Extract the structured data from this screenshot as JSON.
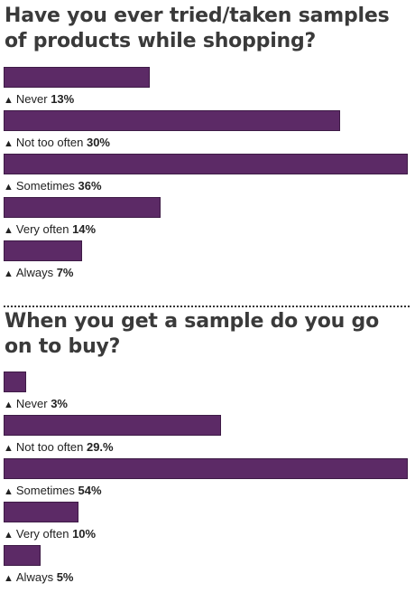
{
  "charts": [
    {
      "title": "Have you ever tried/taken samples of products while shopping?",
      "bars": [
        {
          "category": "Never",
          "value_label": "13%"
        },
        {
          "category": "Not too often",
          "value_label": "30%"
        },
        {
          "category": "Sometimes",
          "value_label": "36%"
        },
        {
          "category": "Very often",
          "value_label": "14%"
        },
        {
          "category": "Always",
          "value_label": "7%"
        }
      ]
    },
    {
      "title": "When you get a sample do you go on to buy?",
      "bars": [
        {
          "category": "Never",
          "value_label": "3%"
        },
        {
          "category": "Not too often",
          "value_label": "29.%"
        },
        {
          "category": "Sometimes",
          "value_label": "54%"
        },
        {
          "category": "Very often",
          "value_label": "10%"
        },
        {
          "category": "Always",
          "value_label": "5%"
        }
      ]
    }
  ],
  "chart_data": [
    {
      "type": "bar",
      "orientation": "horizontal",
      "title": "Have you ever tried/taken samples of products while shopping?",
      "categories": [
        "Never",
        "Not too often",
        "Sometimes",
        "Very often",
        "Always"
      ],
      "values": [
        13,
        30,
        36,
        14,
        7
      ],
      "unit": "%",
      "bar_color": "#5c2a66",
      "xlim": [
        0,
        36
      ],
      "grid": false,
      "legend": "none"
    },
    {
      "type": "bar",
      "orientation": "horizontal",
      "title": "When you get a sample do you go on to buy?",
      "categories": [
        "Never",
        "Not too often",
        "Sometimes",
        "Very often",
        "Always"
      ],
      "values": [
        3,
        29,
        54,
        10,
        5
      ],
      "unit": "%",
      "bar_color": "#5c2a66",
      "xlim": [
        0,
        54
      ],
      "grid": false,
      "legend": "none"
    }
  ],
  "marker_glyph": "▲"
}
